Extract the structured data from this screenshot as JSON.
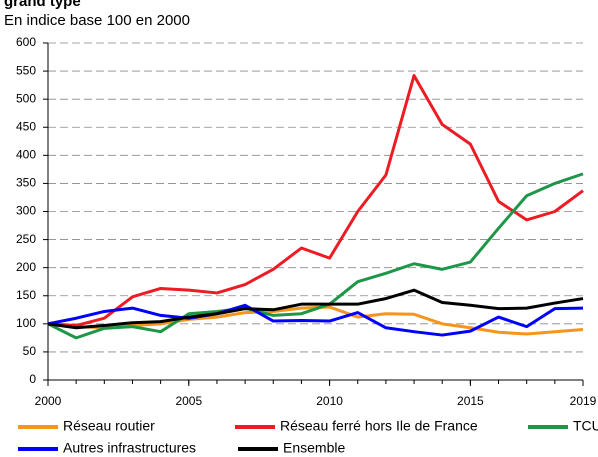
{
  "chart_data": {
    "type": "line",
    "title": "grand type",
    "subtitle": "En indice base 100 en 2000",
    "x": [
      2000,
      2001,
      2002,
      2003,
      2004,
      2005,
      2006,
      2007,
      2008,
      2009,
      2010,
      2011,
      2012,
      2013,
      2014,
      2015,
      2016,
      2017,
      2018,
      2019
    ],
    "xlim": [
      2000,
      2019
    ],
    "xticks": [
      2000,
      2005,
      2010,
      2015,
      2019
    ],
    "ylim": [
      0,
      600
    ],
    "yticks": [
      0,
      50,
      100,
      150,
      200,
      250,
      300,
      350,
      400,
      450,
      500,
      550,
      600
    ],
    "grid": true,
    "legend": "bottom",
    "series": [
      {
        "name": "Réseau routier",
        "color": "#f7941d",
        "values": [
          100,
          95,
          93,
          97,
          100,
          108,
          112,
          120,
          122,
          128,
          130,
          112,
          118,
          117,
          100,
          93,
          85,
          82,
          86,
          90
        ]
      },
      {
        "name": "Réseau ferré hors Ile de France",
        "color": "#ed1c24",
        "values": [
          100,
          97,
          110,
          148,
          163,
          160,
          155,
          170,
          197,
          235,
          217,
          300,
          365,
          542,
          455,
          420,
          318,
          285,
          300,
          337
        ]
      },
      {
        "name": "TCU",
        "color": "#1e9648",
        "values": [
          100,
          75,
          92,
          95,
          86,
          118,
          122,
          128,
          115,
          118,
          135,
          175,
          190,
          207,
          197,
          210,
          270,
          328,
          350,
          367
        ]
      },
      {
        "name": "Autres infrastructures",
        "color": "#0000ff",
        "values": [
          100,
          110,
          122,
          128,
          115,
          110,
          118,
          133,
          105,
          106,
          105,
          120,
          93,
          86,
          80,
          87,
          112,
          95,
          127,
          128
        ]
      },
      {
        "name": "Ensemble",
        "color": "#000000",
        "values": [
          100,
          93,
          97,
          102,
          104,
          112,
          118,
          127,
          125,
          135,
          135,
          135,
          145,
          160,
          138,
          133,
          127,
          128,
          137,
          145
        ]
      }
    ]
  }
}
